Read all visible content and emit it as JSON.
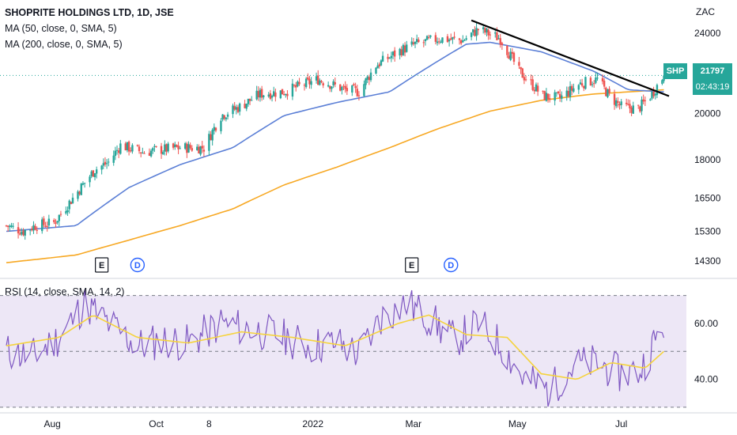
{
  "header": {
    "title": "SHOPRITE HOLDINGS LTD, 1D, JSE",
    "ma50_label": "MA (50, close, 0, SMA, 5)",
    "ma200_label": "MA (200, close, 0, SMA, 5)",
    "rsi_label": "RSI (14, close, SMA, 14, 2)",
    "currency": "ZAC"
  },
  "last_price": {
    "symbol": "SHP",
    "price": "21797",
    "countdown": "02:43:19"
  },
  "colors": {
    "up": "#26a69a",
    "down": "#ef5350",
    "ma50": "#5b7fd6",
    "ma200": "#f7a823",
    "trendline": "#000000",
    "rsi": "#7e57c2",
    "rsi_ma": "#f5d33d",
    "rsi_band": "#ede7f6",
    "earnings_marker": "#131722",
    "dividend_marker": "#2962ff"
  },
  "chart_data": {
    "type": "candlestick",
    "symbol": "SHP",
    "title": "SHOPRITE HOLDINGS LTD, 1D, JSE",
    "y_axis": {
      "scale": "log",
      "range": [
        13800,
        25500
      ],
      "ticks": [
        "24000",
        "20000",
        "18000",
        "16500",
        "15300",
        "14300"
      ]
    },
    "x_axis": {
      "range": [
        "2021-07-05",
        "2022-07-29"
      ],
      "ticks": [
        {
          "date": "2021-08-01",
          "label": "Aug"
        },
        {
          "date": "2021-10-01",
          "label": "Oct"
        },
        {
          "date": "2021-11-01",
          "label": "8"
        },
        {
          "date": "2022-01-01",
          "label": "2022"
        },
        {
          "date": "2022-03-01",
          "label": "Mar"
        },
        {
          "date": "2022-05-01",
          "label": "May"
        },
        {
          "date": "2022-07-01",
          "label": "Jul"
        }
      ]
    },
    "price_waypoints": [
      [
        "2021-07-05",
        15500
      ],
      [
        "2021-07-15",
        15300
      ],
      [
        "2021-07-22",
        15500
      ],
      [
        "2021-08-02",
        15600
      ],
      [
        "2021-08-13",
        16500
      ],
      [
        "2021-08-26",
        17600
      ],
      [
        "2021-09-03",
        17900
      ],
      [
        "2021-09-10",
        18600
      ],
      [
        "2021-09-24",
        18300
      ],
      [
        "2021-10-01",
        18400
      ],
      [
        "2021-10-15",
        18500
      ],
      [
        "2021-10-29",
        18500
      ],
      [
        "2021-11-08",
        19900
      ],
      [
        "2021-11-19",
        20300
      ],
      [
        "2021-12-01",
        20900
      ],
      [
        "2021-12-15",
        21000
      ],
      [
        "2022-01-04",
        21600
      ],
      [
        "2022-01-20",
        21100
      ],
      [
        "2022-01-28",
        21000
      ],
      [
        "2022-02-07",
        22300
      ],
      [
        "2022-02-22",
        23100
      ],
      [
        "2022-03-02",
        23400
      ],
      [
        "2022-03-16",
        23700
      ],
      [
        "2022-03-30",
        23600
      ],
      [
        "2022-04-08",
        24200
      ],
      [
        "2022-04-21",
        23700
      ],
      [
        "2022-05-02",
        22000
      ],
      [
        "2022-05-16",
        20800
      ],
      [
        "2022-05-26",
        20700
      ],
      [
        "2022-06-07",
        21400
      ],
      [
        "2022-06-17",
        21600
      ],
      [
        "2022-06-24",
        20800
      ],
      [
        "2022-07-01",
        20300
      ],
      [
        "2022-07-11",
        20200
      ],
      [
        "2022-07-19",
        20900
      ],
      [
        "2022-07-26",
        21797
      ]
    ],
    "ma50_waypoints": [
      [
        "2021-07-05",
        15300
      ],
      [
        "2021-08-15",
        15500
      ],
      [
        "2021-09-15",
        16900
      ],
      [
        "2021-10-15",
        17800
      ],
      [
        "2021-11-15",
        18500
      ],
      [
        "2021-12-15",
        19900
      ],
      [
        "2022-01-15",
        20500
      ],
      [
        "2022-02-15",
        21000
      ],
      [
        "2022-03-15",
        22500
      ],
      [
        "2022-04-01",
        23400
      ],
      [
        "2022-04-15",
        23500
      ],
      [
        "2022-05-15",
        23000
      ],
      [
        "2022-06-15",
        22000
      ],
      [
        "2022-07-05",
        21100
      ],
      [
        "2022-07-26",
        21000
      ]
    ],
    "ma200_waypoints": [
      [
        "2021-07-05",
        14250
      ],
      [
        "2021-08-15",
        14500
      ],
      [
        "2021-09-15",
        15000
      ],
      [
        "2021-10-15",
        15500
      ],
      [
        "2021-11-15",
        16100
      ],
      [
        "2021-12-15",
        17000
      ],
      [
        "2022-01-15",
        17700
      ],
      [
        "2022-02-15",
        18500
      ],
      [
        "2022-03-15",
        19300
      ],
      [
        "2022-04-15",
        20100
      ],
      [
        "2022-05-15",
        20600
      ],
      [
        "2022-06-15",
        20900
      ],
      [
        "2022-07-26",
        21100
      ]
    ],
    "trendline": {
      "from": [
        "2022-04-04",
        24700
      ],
      "to": [
        "2022-07-29",
        20800
      ]
    },
    "last_price": 21797,
    "events": [
      {
        "type": "E",
        "date": "2021-08-30"
      },
      {
        "type": "D",
        "date": "2021-09-20"
      },
      {
        "type": "E",
        "date": "2022-02-28"
      },
      {
        "type": "D",
        "date": "2022-03-23"
      }
    ],
    "rsi": {
      "label": "RSI (14, close, SMA, 14, 2)",
      "y_range": [
        28,
        75
      ],
      "ticks": [
        "60.00",
        "40.00"
      ],
      "bands": [
        30,
        50,
        70
      ],
      "waypoints": [
        [
          "2021-07-05",
          50
        ],
        [
          "2021-07-20",
          48
        ],
        [
          "2021-08-05",
          55
        ],
        [
          "2021-08-20",
          67
        ],
        [
          "2021-09-03",
          60
        ],
        [
          "2021-09-20",
          52
        ],
        [
          "2021-10-05",
          54
        ],
        [
          "2021-10-20",
          53
        ],
        [
          "2021-11-08",
          60
        ],
        [
          "2021-11-25",
          58
        ],
        [
          "2021-12-10",
          56
        ],
        [
          "2021-12-30",
          52
        ],
        [
          "2022-01-15",
          53
        ],
        [
          "2022-01-28",
          49
        ],
        [
          "2022-02-10",
          62
        ],
        [
          "2022-02-25",
          67
        ],
        [
          "2022-03-10",
          62
        ],
        [
          "2022-03-25",
          54
        ],
        [
          "2022-04-08",
          60
        ],
        [
          "2022-04-22",
          52
        ],
        [
          "2022-05-05",
          40
        ],
        [
          "2022-05-20",
          36
        ],
        [
          "2022-06-03",
          45
        ],
        [
          "2022-06-17",
          46
        ],
        [
          "2022-06-30",
          42
        ],
        [
          "2022-07-12",
          43
        ],
        [
          "2022-07-26",
          60
        ]
      ],
      "ma_waypoints": [
        [
          "2021-07-05",
          52
        ],
        [
          "2021-08-05",
          55
        ],
        [
          "2021-08-25",
          63
        ],
        [
          "2021-09-20",
          55
        ],
        [
          "2021-10-20",
          53
        ],
        [
          "2021-11-20",
          57
        ],
        [
          "2021-12-20",
          55
        ],
        [
          "2022-01-20",
          52
        ],
        [
          "2022-02-20",
          60
        ],
        [
          "2022-03-10",
          63
        ],
        [
          "2022-04-01",
          56
        ],
        [
          "2022-04-25",
          55
        ],
        [
          "2022-05-15",
          42
        ],
        [
          "2022-06-05",
          40
        ],
        [
          "2022-06-25",
          46
        ],
        [
          "2022-07-15",
          44
        ],
        [
          "2022-07-26",
          50
        ]
      ]
    }
  }
}
